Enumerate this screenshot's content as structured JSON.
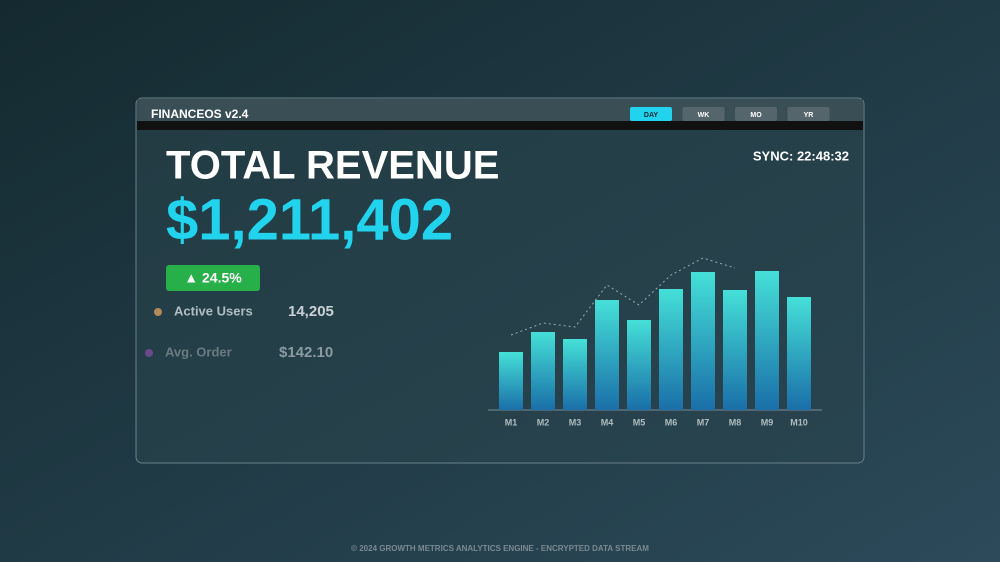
{
  "header": {
    "title": "FINANCEOS v2.4",
    "tabs": [
      "DAY",
      "WK",
      "MO",
      "YR"
    ],
    "active_tab": 0,
    "sync": "SYNC: 22:48:32"
  },
  "revenue": {
    "label": "TOTAL REVENUE",
    "value": "$1,211,402",
    "change": "▲ 24.5%"
  },
  "stats": [
    {
      "label": "Active Users",
      "value": "14,205",
      "color": "#b08a5a"
    },
    {
      "label": "Avg. Order",
      "value": "$142.10",
      "color": "#6a4a8a"
    }
  ],
  "chart_data": {
    "type": "bar",
    "categories": [
      "M1",
      "M2",
      "M3",
      "M4",
      "M5",
      "M6",
      "M7",
      "M8",
      "M9",
      "M10"
    ],
    "series": [
      {
        "color": "#2fc4d6",
        "values": [
          58,
          78,
          71,
          110,
          90,
          121,
          138,
          120,
          139,
          113
        ]
      },
      {
        "color": "#9aa8b0",
        "line": "dotted",
        "values": [
          75,
          87,
          83,
          125,
          105,
          135,
          152,
          142,
          null,
          null
        ]
      }
    ],
    "ylim": [
      0,
      160
    ]
  },
  "footer": "© 2024 GROWTH METRICS ANALYTICS ENGINE - ENCRYPTED DATA STREAM"
}
